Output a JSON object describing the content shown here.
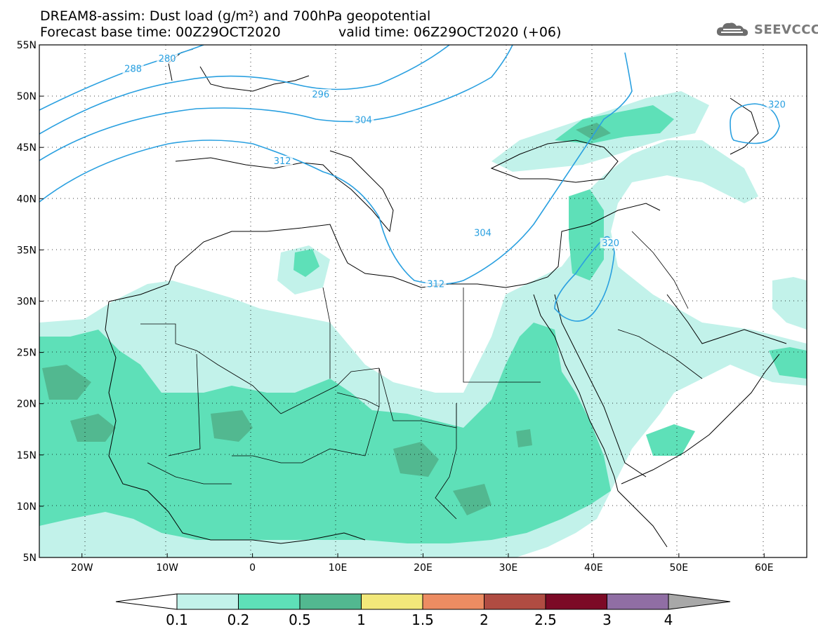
{
  "header": {
    "title_line1": "DREAM8-assim: Dust load (g/m²) and 700hPa geopotential",
    "title_line2a": "Forecast base time: 00Z29OCT2020",
    "title_line2b": "valid time: 06Z29OCT2020 (+06)",
    "logo_text": "SEEVCCC",
    "logo_icon": "cloud-icon"
  },
  "map": {
    "lat_labels": [
      "55N",
      "50N",
      "45N",
      "40N",
      "35N",
      "30N",
      "25N",
      "20N",
      "15N",
      "10N",
      "5N"
    ],
    "lat_values": [
      55,
      50,
      45,
      40,
      35,
      30,
      25,
      20,
      15,
      10,
      5
    ],
    "lon_labels": [
      "20W",
      "10W",
      "0",
      "10E",
      "20E",
      "30E",
      "40E",
      "50E",
      "60E"
    ],
    "lon_values": [
      -20,
      -10,
      0,
      10,
      20,
      30,
      40,
      50,
      60
    ],
    "lon_range": [
      -25,
      65
    ],
    "lat_range": [
      5,
      55
    ],
    "contour_color": "#2aa0e0",
    "contour_labels": [
      {
        "text": "288",
        "lon": -14,
        "lat": 52.5
      },
      {
        "text": "280",
        "lon": -10,
        "lat": 53.5
      },
      {
        "text": "296",
        "lon": 8,
        "lat": 50
      },
      {
        "text": "304",
        "lon": 13,
        "lat": 47.5
      },
      {
        "text": "312",
        "lon": 3.5,
        "lat": 43.5
      },
      {
        "text": "304",
        "lon": 27,
        "lat": 36.5
      },
      {
        "text": "312",
        "lon": 21.5,
        "lat": 31.5
      },
      {
        "text": "320",
        "lon": 42,
        "lat": 35.5
      },
      {
        "text": "320",
        "lon": 61.5,
        "lat": 49
      }
    ]
  },
  "colorbar": {
    "labels": [
      "0.1",
      "0.2",
      "0.5",
      "1",
      "1.5",
      "2",
      "2.5",
      "3",
      "4"
    ],
    "colors": [
      "#c2f2ea",
      "#5ee0b8",
      "#52b890",
      "#f2e87a",
      "#ec8c62",
      "#b04c42",
      "#7c0a26",
      "#906ea4"
    ],
    "end_high_color": "#a8a8a8",
    "end_low_color": "#ffffff"
  }
}
